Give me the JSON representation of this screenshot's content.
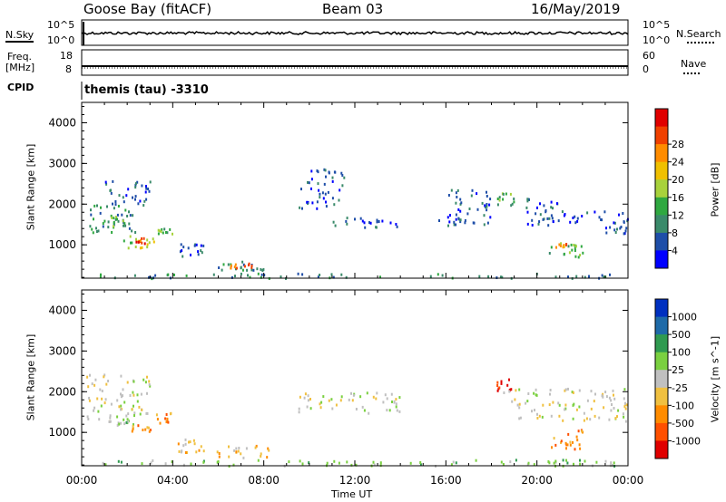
{
  "header": {
    "site": "Goose Bay (fitACF)",
    "beam": "Beam 03",
    "date": "16/May/2019"
  },
  "strips": {
    "nsky_label": "N.Sky",
    "nsky_ticks": [
      "10^5",
      "10^0"
    ],
    "nsearch_label": "N.Search",
    "nsearch_ticks": [
      "10^5",
      "10^0"
    ],
    "freq_label": "Freq.",
    "freq_unit": "[MHz]",
    "freq_ticks": [
      "18",
      "8"
    ],
    "nave_label": "Nave",
    "nave_ticks": [
      "60",
      "0"
    ],
    "cpid_label": "CPID",
    "cpid_value": "themis (tau) -3310"
  },
  "time_axis": {
    "xlabel": "Time UT",
    "ticks": [
      "00:00",
      "04:00",
      "08:00",
      "12:00",
      "16:00",
      "20:00",
      "00:00"
    ]
  },
  "chart_data": [
    {
      "type": "heatmap",
      "name": "power",
      "ylabel": "Slant Range [km]",
      "xlabel": "Time UT",
      "x_range_hours": [
        0,
        24
      ],
      "ylim": [
        180,
        4500
      ],
      "y_ticks": [
        1000,
        2000,
        3000,
        4000
      ],
      "colorbar": {
        "label": "Power [dB]",
        "ticks": [
          "4",
          "8",
          "12",
          "16",
          "20",
          "24",
          "28"
        ],
        "colors": [
          "#0000ff",
          "#1e4ea8",
          "#3a8a6a",
          "#2fa840",
          "#a8d23c",
          "#f0c000",
          "#ff8c00",
          "#f04000",
          "#e00000"
        ]
      },
      "regions": [
        {
          "t": [
            0.3,
            2.5
          ],
          "r": [
            1300,
            2000
          ],
          "level": 2
        },
        {
          "t": [
            0.8,
            2.0
          ],
          "r": [
            1450,
            1750
          ],
          "level": 3
        },
        {
          "t": [
            1.8,
            3.2
          ],
          "r": [
            950,
            1250
          ],
          "level": 4
        },
        {
          "t": [
            2.3,
            2.8
          ],
          "r": [
            1050,
            1200
          ],
          "level": 7
        },
        {
          "t": [
            1.0,
            3.0
          ],
          "r": [
            1900,
            2600
          ],
          "level": 1
        },
        {
          "t": [
            3.3,
            4.0
          ],
          "r": [
            1250,
            1450
          ],
          "level": 3
        },
        {
          "t": [
            4.3,
            5.5
          ],
          "r": [
            700,
            1050
          ],
          "level": 1
        },
        {
          "t": [
            5.8,
            8.2
          ],
          "r": [
            400,
            650
          ],
          "level": 2
        },
        {
          "t": [
            6.5,
            7.6
          ],
          "r": [
            450,
            580
          ],
          "level": 7
        },
        {
          "t": [
            9.5,
            11.5
          ],
          "r": [
            1900,
            2900
          ],
          "level": 1
        },
        {
          "t": [
            11.0,
            14.0
          ],
          "r": [
            1450,
            1700
          ],
          "level": 1
        },
        {
          "t": [
            15.5,
            18.0
          ],
          "r": [
            1500,
            2400
          ],
          "level": 1
        },
        {
          "t": [
            18.2,
            19.2
          ],
          "r": [
            2000,
            2300
          ],
          "level": 3
        },
        {
          "t": [
            19.5,
            21.0
          ],
          "r": [
            1500,
            2200
          ],
          "level": 1
        },
        {
          "t": [
            20.0,
            24.0
          ],
          "r": [
            1550,
            1850
          ],
          "level": 1
        },
        {
          "t": [
            23.0,
            24.0
          ],
          "r": [
            1300,
            1500
          ],
          "level": 1
        },
        {
          "t": [
            20.5,
            22.0
          ],
          "r": [
            700,
            1100
          ],
          "level": 3
        },
        {
          "t": [
            20.8,
            21.3
          ],
          "r": [
            950,
            1050
          ],
          "level": 6
        },
        {
          "t": [
            0.5,
            24.0
          ],
          "r": [
            200,
            320
          ],
          "level": 2
        }
      ]
    },
    {
      "type": "heatmap",
      "name": "velocity",
      "ylabel": "Slant Range [km]",
      "xlabel": "Time UT",
      "x_range_hours": [
        0,
        24
      ],
      "ylim": [
        180,
        4500
      ],
      "y_ticks": [
        1000,
        2000,
        3000,
        4000
      ],
      "colorbar": {
        "label": "Velocity [m s^-1]",
        "ticks": [
          "1000",
          "500",
          "100",
          "25",
          "-25",
          "-100",
          "-500",
          "-1000"
        ],
        "colors": [
          "#0030c0",
          "#1e6aa8",
          "#2f9a50",
          "#7ad040",
          "#c0c0c0",
          "#f0c040",
          "#ff8c00",
          "#ff5000",
          "#e00000"
        ]
      },
      "regions": [
        {
          "t": [
            0.2,
            3.0
          ],
          "r": [
            1250,
            2500
          ],
          "level": 4
        },
        {
          "t": [
            1.5,
            2.5
          ],
          "r": [
            1200,
            1500
          ],
          "level": 3
        },
        {
          "t": [
            2.0,
            3.0
          ],
          "r": [
            1050,
            1200
          ],
          "level": 6
        },
        {
          "t": [
            3.2,
            4.0
          ],
          "r": [
            1250,
            1500
          ],
          "level": 6
        },
        {
          "t": [
            4.2,
            5.5
          ],
          "r": [
            500,
            900
          ],
          "level": 5
        },
        {
          "t": [
            5.8,
            8.2
          ],
          "r": [
            400,
            700
          ],
          "level": 5
        },
        {
          "t": [
            9.5,
            14.0
          ],
          "r": [
            1500,
            2000
          ],
          "level": 4
        },
        {
          "t": [
            18.2,
            18.9
          ],
          "r": [
            2050,
            2400
          ],
          "level": 8
        },
        {
          "t": [
            18.5,
            24.0
          ],
          "r": [
            1300,
            2100
          ],
          "level": 4
        },
        {
          "t": [
            20.5,
            22.0
          ],
          "r": [
            600,
            1100
          ],
          "level": 6
        },
        {
          "t": [
            0.5,
            24.0
          ],
          "r": [
            200,
            350
          ],
          "level": 3
        }
      ]
    }
  ]
}
